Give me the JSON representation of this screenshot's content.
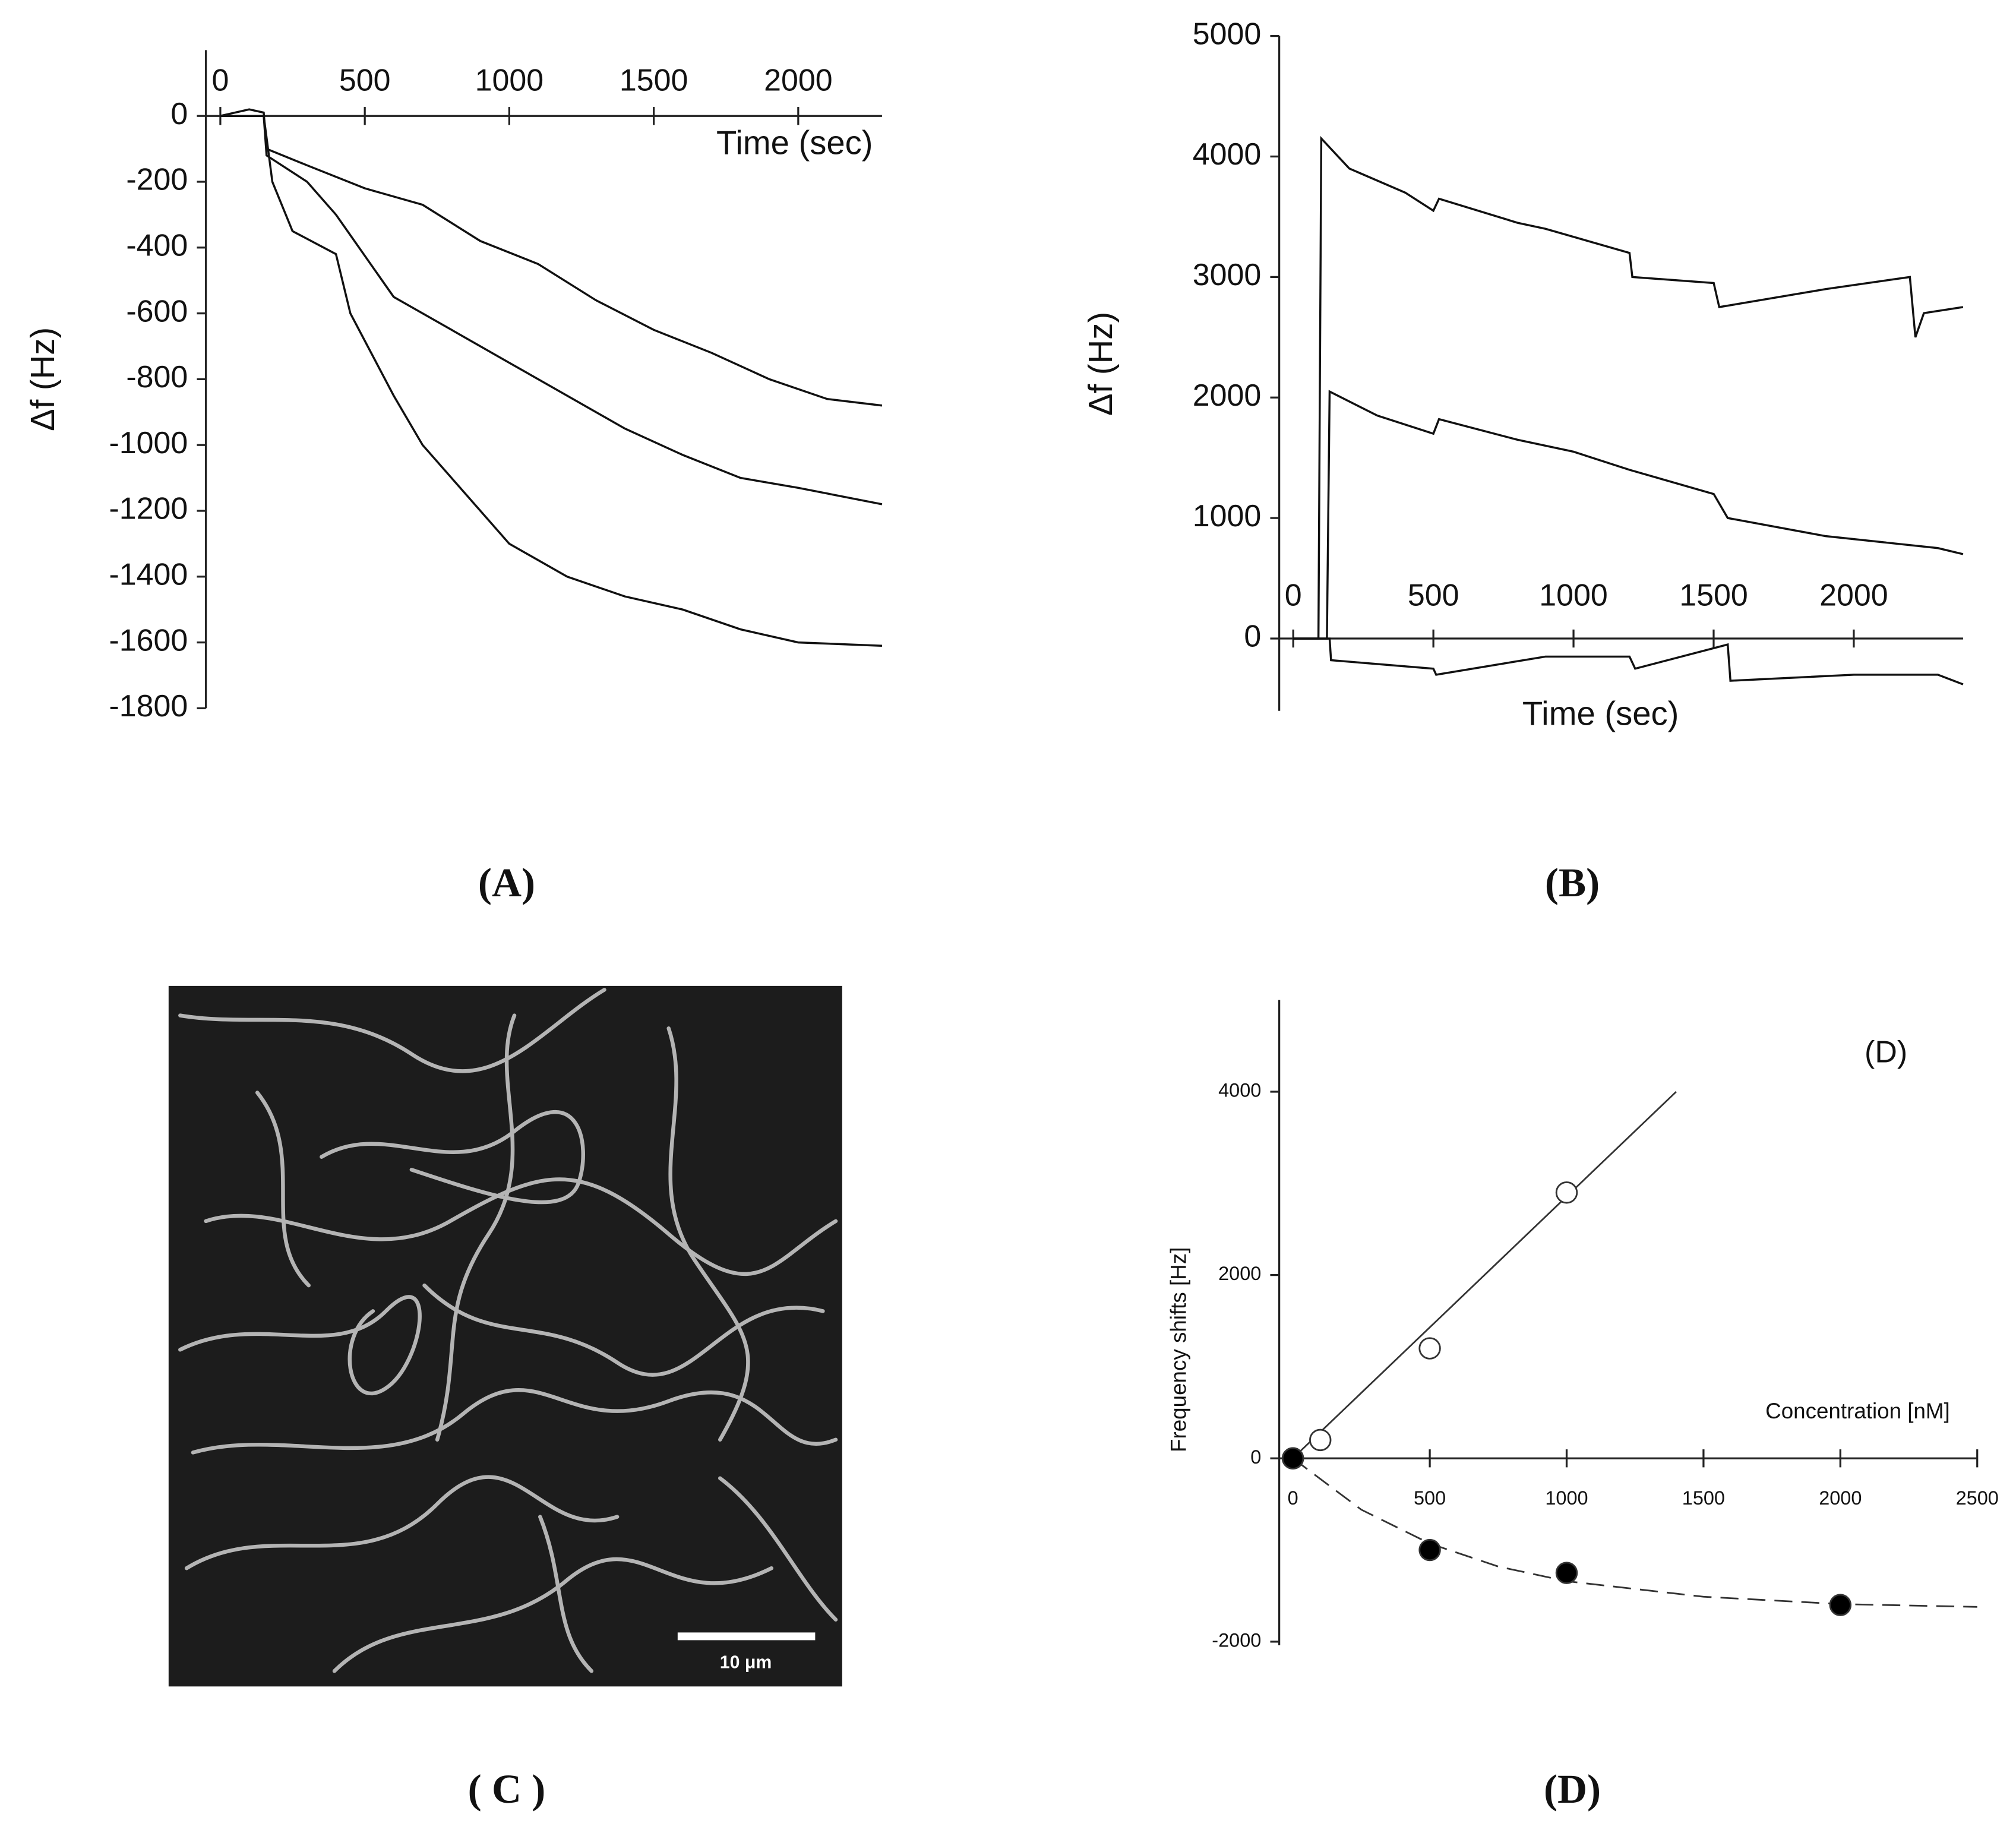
{
  "chart_data": [
    {
      "type": "line",
      "xlabel": "Time (sec)",
      "ylabel": "Δf (Hz)",
      "xlim": [
        -50,
        2290
      ],
      "ylim": [
        -1800,
        200
      ],
      "xticks": [
        0,
        500,
        1000,
        1500,
        2000
      ],
      "yticks": [
        0,
        -200,
        -400,
        -600,
        -800,
        -1000,
        -1200,
        -1400,
        -1600,
        -1800
      ],
      "series": [
        {
          "color": "#111111",
          "x": [
            0,
            100,
            150,
            160,
            300,
            500,
            700,
            900,
            1100,
            1300,
            1500,
            1700,
            1900,
            2100,
            2290
          ],
          "values": [
            0,
            20,
            10,
            -100,
            -150,
            -220,
            -270,
            -380,
            -450,
            -560,
            -650,
            -720,
            -800,
            -860,
            -880
          ]
        },
        {
          "color": "#111111",
          "x": [
            0,
            150,
            160,
            300,
            400,
            600,
            800,
            1000,
            1200,
            1400,
            1600,
            1800,
            2000,
            2290
          ],
          "values": [
            0,
            0,
            -120,
            -200,
            -300,
            -550,
            -650,
            -750,
            -850,
            -950,
            -1030,
            -1100,
            -1130,
            -1180
          ]
        },
        {
          "color": "#111111",
          "x": [
            0,
            150,
            180,
            250,
            400,
            450,
            600,
            700,
            800,
            1000,
            1200,
            1400,
            1600,
            1800,
            2000,
            2290
          ],
          "values": [
            0,
            0,
            -200,
            -350,
            -420,
            -600,
            -850,
            -1000,
            -1100,
            -1300,
            -1400,
            -1460,
            -1500,
            -1560,
            -1600,
            -1610
          ]
        }
      ]
    },
    {
      "type": "line",
      "xlabel": "Time (sec)",
      "ylabel": "Δf (Hz)",
      "xlim": [
        -50,
        2390
      ],
      "ylim": [
        -600,
        5000
      ],
      "xticks": [
        0,
        500,
        1000,
        1500,
        2000
      ],
      "yticks": [
        0,
        1000,
        2000,
        3000,
        4000,
        5000
      ],
      "series": [
        {
          "color": "#111111",
          "x": [
            0,
            90,
            100,
            200,
            400,
            500,
            520,
            800,
            900,
            1200,
            1210,
            1500,
            1520,
            1900,
            2200,
            2220,
            2250,
            2390
          ],
          "values": [
            0,
            0,
            4150,
            3900,
            3700,
            3550,
            3650,
            3450,
            3400,
            3200,
            3000,
            2950,
            2750,
            2900,
            3000,
            2500,
            2700,
            2750
          ]
        },
        {
          "color": "#111111",
          "x": [
            0,
            120,
            130,
            300,
            500,
            520,
            800,
            1000,
            1200,
            1500,
            1550,
            1900,
            2300,
            2390
          ],
          "values": [
            0,
            0,
            2050,
            1850,
            1700,
            1820,
            1650,
            1550,
            1400,
            1200,
            1000,
            850,
            750,
            700
          ]
        },
        {
          "color": "#111111",
          "x": [
            0,
            130,
            135,
            500,
            510,
            900,
            1200,
            1220,
            1550,
            1560,
            2000,
            2300,
            2390
          ],
          "values": [
            0,
            0,
            -180,
            -250,
            -300,
            -150,
            -150,
            -250,
            -50,
            -350,
            -300,
            -300,
            -380
          ]
        }
      ]
    },
    {
      "type": "scatter",
      "xlabel": "Concentration [nM]",
      "ylabel": "Frequency shifts [Hz]",
      "annotation": "(D)",
      "xlim": [
        -50,
        2500
      ],
      "ylim": [
        -2040,
        5000
      ],
      "xticks": [
        0,
        500,
        1000,
        1500,
        2000,
        2500
      ],
      "yticks": [
        -2000,
        0,
        2000,
        4000
      ],
      "series": [
        {
          "color": "#ffffff",
          "x": [
            0,
            100,
            500,
            1000
          ],
          "values": [
            0,
            200,
            1200,
            2900
          ]
        },
        {
          "color": "#000000",
          "x": [
            0,
            500,
            1000,
            2000
          ],
          "values": [
            0,
            -1000,
            -1250,
            -1600
          ]
        }
      ],
      "lines": [
        {
          "dash": false,
          "x": [
            0,
            1400
          ],
          "values": [
            0,
            4000
          ]
        },
        {
          "dash": true,
          "x": [
            0,
            250,
            500,
            750,
            1000,
            1500,
            2000,
            2500
          ],
          "values": [
            0,
            -560,
            -930,
            -1180,
            -1340,
            -1510,
            -1590,
            -1620
          ]
        }
      ]
    }
  ],
  "image": {
    "scale_bar": "10 μm"
  },
  "captions": [
    "(A)",
    "(B)",
    "( C )",
    "(D)"
  ]
}
